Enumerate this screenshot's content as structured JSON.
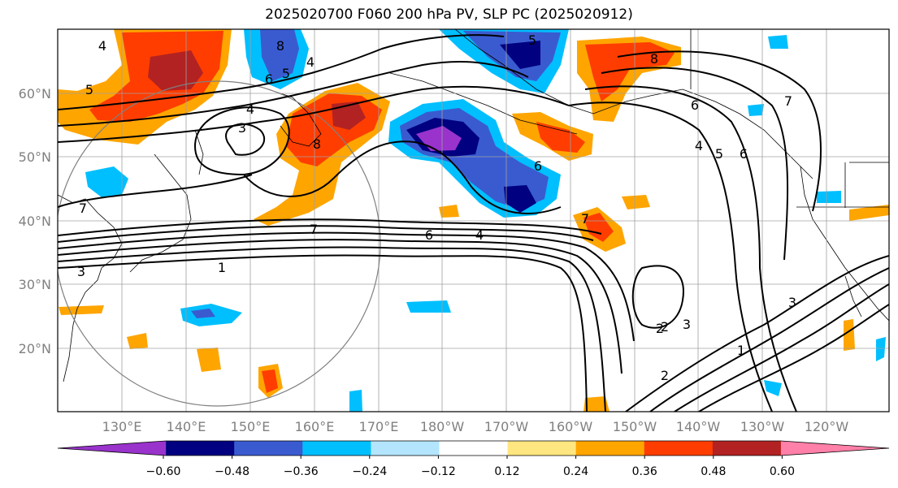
{
  "title": "2025020700 F060 200 hPa PV, SLP PC (2025020912)",
  "lat_labels": [
    "20°N",
    "30°N",
    "40°N",
    "50°N",
    "60°N"
  ],
  "lon_labels": [
    "130°E",
    "140°E",
    "150°E",
    "160°E",
    "170°E",
    "180°W",
    "170°W",
    "160°W",
    "150°W",
    "140°W",
    "130°W",
    "120°W"
  ],
  "colorbar": {
    "ticks": [
      "−0.60",
      "−0.48",
      "−0.36",
      "−0.24",
      "−0.12",
      "0.12",
      "0.24",
      "0.36",
      "0.48",
      "0.60"
    ],
    "colors": [
      "#9933cc",
      "#000080",
      "#3a5bd0",
      "#00bfff",
      "#b3e5ff",
      "#ffffff",
      "#ffe680",
      "#ffa500",
      "#ff3d00",
      "#b22222",
      "#ff80a8"
    ]
  },
  "colors": {
    "purple": "#9933cc",
    "navy": "#000080",
    "blue": "#3a5bd0",
    "cyan": "#00bfff",
    "lightblue": "#b3e5ff",
    "yellow": "#ffe680",
    "orange": "#ffa500",
    "red": "#ff3d00",
    "darkred": "#b22222"
  },
  "contour_labels": [
    "4",
    "5",
    "3",
    "4",
    "8",
    "6",
    "5",
    "4",
    "7",
    "3",
    "5",
    "8",
    "6",
    "6",
    "7",
    "2",
    "1",
    "6",
    "4",
    "7",
    "6",
    "5",
    "4",
    "8",
    "7",
    "2",
    "3",
    "2",
    "3",
    "1"
  ]
}
